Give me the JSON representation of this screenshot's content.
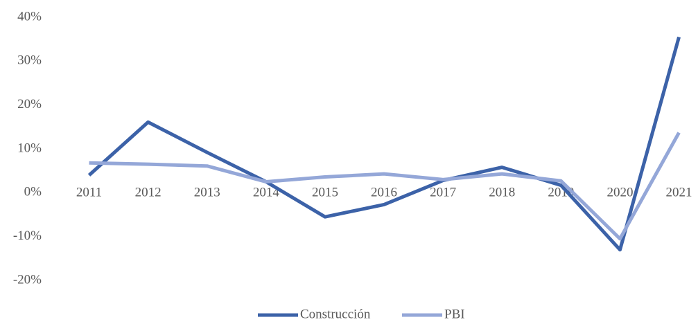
{
  "chart_data": {
    "type": "line",
    "categories": [
      "2011",
      "2012",
      "2013",
      "2014",
      "2015",
      "2016",
      "2017",
      "2018",
      "2019",
      "2020",
      "2021"
    ],
    "series": [
      {
        "name": "Construcción",
        "color": "#3c62a8",
        "values": [
          4.0,
          16.1,
          9.2,
          2.5,
          -5.5,
          -2.7,
          2.8,
          5.8,
          1.7,
          -13.0,
          35.5
        ]
      },
      {
        "name": "PBI",
        "color": "#94a7d8",
        "values": [
          6.8,
          6.5,
          6.1,
          2.5,
          3.6,
          4.3,
          3.0,
          4.3,
          2.7,
          -10.5,
          13.7
        ]
      }
    ],
    "ylim": [
      -20,
      40
    ],
    "yticks": [
      {
        "value": -20,
        "label": "-20%"
      },
      {
        "value": -10,
        "label": "-10%"
      },
      {
        "value": 0,
        "label": "0%"
      },
      {
        "value": 10,
        "label": "10%"
      },
      {
        "value": 20,
        "label": "20%"
      },
      {
        "value": 30,
        "label": "30%"
      },
      {
        "value": 40,
        "label": "40%"
      }
    ],
    "legend": "bottom"
  }
}
